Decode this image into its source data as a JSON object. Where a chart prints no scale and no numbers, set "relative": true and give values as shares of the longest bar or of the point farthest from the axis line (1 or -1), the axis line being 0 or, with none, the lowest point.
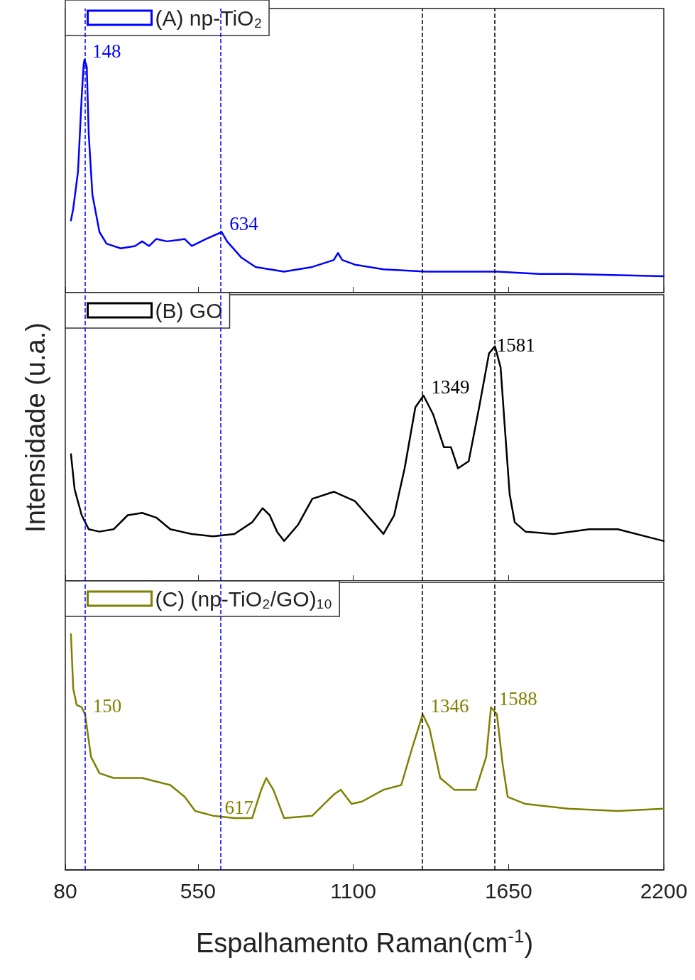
{
  "chart_data": [
    {
      "type": "line",
      "relative": true,
      "legend": "top left",
      "grid": false,
      "marker": "none",
      "line_style": "solid",
      "tick_labels": false,
      "xlim": [
        80,
        2200
      ],
      "xticks": [
        80,
        550,
        1100,
        1650,
        2200
      ],
      "series": [
        {
          "name": "(A) np-TiO₂",
          "color": "#0000ff",
          "x": [
            100,
            108,
            125,
            138,
            145,
            148,
            156,
            163,
            176,
            201,
            226,
            276,
            327,
            352,
            377,
            402,
            440,
            503,
            528,
            578,
            634,
            653,
            704,
            754,
            804,
            855,
            955,
            1031,
            1046,
            1061,
            1106,
            1207,
            1358,
            1609,
            1760,
            1861,
            2200
          ],
          "values": [
            0.31,
            0.36,
            0.52,
            0.84,
            0.98,
            1,
            0.97,
            0.68,
            0.42,
            0.26,
            0.21,
            0.19,
            0.2,
            0.22,
            0.2,
            0.23,
            0.22,
            0.23,
            0.2,
            0.23,
            0.26,
            0.22,
            0.15,
            0.11,
            0.1,
            0.09,
            0.11,
            0.14,
            0.17,
            0.14,
            0.12,
            0.1,
            0.09,
            0.09,
            0.08,
            0.08,
            0.07
          ]
        }
      ],
      "annotations": [
        {
          "text": "148",
          "x": 148,
          "y": 1
        },
        {
          "text": "634",
          "x": 634,
          "y": 0.26
        }
      ],
      "ref_lines": [
        {
          "axis": "x",
          "value": 150,
          "color": "#0000ff",
          "line_style": "dashed"
        },
        {
          "axis": "x",
          "value": 630,
          "color": "#0000ff",
          "line_style": "dashed"
        },
        {
          "axis": "x",
          "value": 1345,
          "color": "#000000",
          "line_style": "dashed"
        },
        {
          "axis": "x",
          "value": 1600,
          "color": "#000000",
          "line_style": "dashed"
        }
      ]
    },
    {
      "type": "line",
      "relative": true,
      "legend": "top left",
      "grid": false,
      "marker": "none",
      "line_style": "solid",
      "tick_labels": false,
      "xlim": [
        80,
        2200
      ],
      "xticks": [
        80,
        550,
        1100,
        1650,
        2200
      ],
      "ylabel": "Intensidade (u.a.)",
      "series": [
        {
          "name": "(B) GO",
          "color": "#000000",
          "x": [
            100,
            113,
            138,
            163,
            201,
            251,
            301,
            352,
            402,
            452,
            528,
            603,
            679,
            742,
            779,
            804,
            830,
            855,
            905,
            955,
            1031,
            1106,
            1157,
            1207,
            1245,
            1282,
            1320,
            1349,
            1383,
            1421,
            1446,
            1471,
            1509,
            1546,
            1581,
            1602,
            1622,
            1639,
            1654,
            1672,
            1710,
            1810,
            1936,
            2037,
            2200
          ],
          "values": [
            0.54,
            0.39,
            0.28,
            0.22,
            0.21,
            0.22,
            0.28,
            0.29,
            0.27,
            0.22,
            0.2,
            0.19,
            0.2,
            0.25,
            0.31,
            0.28,
            0.21,
            0.17,
            0.24,
            0.35,
            0.38,
            0.34,
            0.27,
            0.2,
            0.28,
            0.48,
            0.74,
            0.79,
            0.71,
            0.57,
            0.57,
            0.48,
            0.51,
            0.74,
            0.97,
            1,
            0.91,
            0.62,
            0.37,
            0.25,
            0.21,
            0.2,
            0.22,
            0.22,
            0.17
          ]
        }
      ],
      "annotations": [
        {
          "text": "1349",
          "x": 1349,
          "y": 0.79
        },
        {
          "text": "1581",
          "x": 1581,
          "y": 0.97
        }
      ],
      "ref_lines": [
        {
          "axis": "x",
          "value": 150,
          "color": "#0000ff",
          "line_style": "dashed"
        },
        {
          "axis": "x",
          "value": 630,
          "color": "#0000ff",
          "line_style": "dashed"
        },
        {
          "axis": "x",
          "value": 1345,
          "color": "#000000",
          "line_style": "dashed"
        },
        {
          "axis": "x",
          "value": 1600,
          "color": "#000000",
          "line_style": "dashed"
        }
      ]
    },
    {
      "type": "line",
      "relative": true,
      "legend": "top left",
      "grid": false,
      "marker": "none",
      "line_style": "solid",
      "tick_labels": "x",
      "xlim": [
        80,
        2200
      ],
      "xticks": [
        80,
        550,
        1100,
        1650,
        2200
      ],
      "xlabel": "Espalhamento Raman(cm$^{-1}$)",
      "series": [
        {
          "name": "(C) (np-TiO₂/GO)₁₀",
          "color": "#808000",
          "x": [
            100,
            108,
            120,
            138,
            150,
            171,
            201,
            251,
            352,
            452,
            503,
            540,
            603,
            679,
            742,
            774,
            792,
            817,
            855,
            955,
            1031,
            1056,
            1094,
            1131,
            1207,
            1270,
            1307,
            1346,
            1370,
            1408,
            1458,
            1534,
            1571,
            1588,
            1609,
            1629,
            1647,
            1710,
            1861,
            2037,
            2200
          ],
          "values": [
            1,
            0.77,
            0.7,
            0.69,
            0.66,
            0.48,
            0.41,
            0.39,
            0.39,
            0.36,
            0.31,
            0.25,
            0.23,
            0.22,
            0.22,
            0.34,
            0.39,
            0.34,
            0.22,
            0.23,
            0.32,
            0.34,
            0.28,
            0.29,
            0.34,
            0.36,
            0.51,
            0.66,
            0.6,
            0.39,
            0.34,
            0.34,
            0.48,
            0.69,
            0.66,
            0.45,
            0.31,
            0.28,
            0.26,
            0.25,
            0.26
          ]
        }
      ],
      "annotations": [
        {
          "text": "150",
          "x": 150,
          "y": 0.66
        },
        {
          "text": "617",
          "x": 617,
          "y": 0.23
        },
        {
          "text": "1346",
          "x": 1346,
          "y": 0.66
        },
        {
          "text": "1588",
          "x": 1588,
          "y": 0.69
        }
      ],
      "ref_lines": [
        {
          "axis": "x",
          "value": 150,
          "color": "#0000ff",
          "line_style": "dashed"
        },
        {
          "axis": "x",
          "value": 630,
          "color": "#0000ff",
          "line_style": "dashed"
        },
        {
          "axis": "x",
          "value": 1345,
          "color": "#000000",
          "line_style": "dashed"
        },
        {
          "axis": "x",
          "value": 1600,
          "color": "#000000",
          "line_style": "dashed"
        }
      ]
    }
  ]
}
